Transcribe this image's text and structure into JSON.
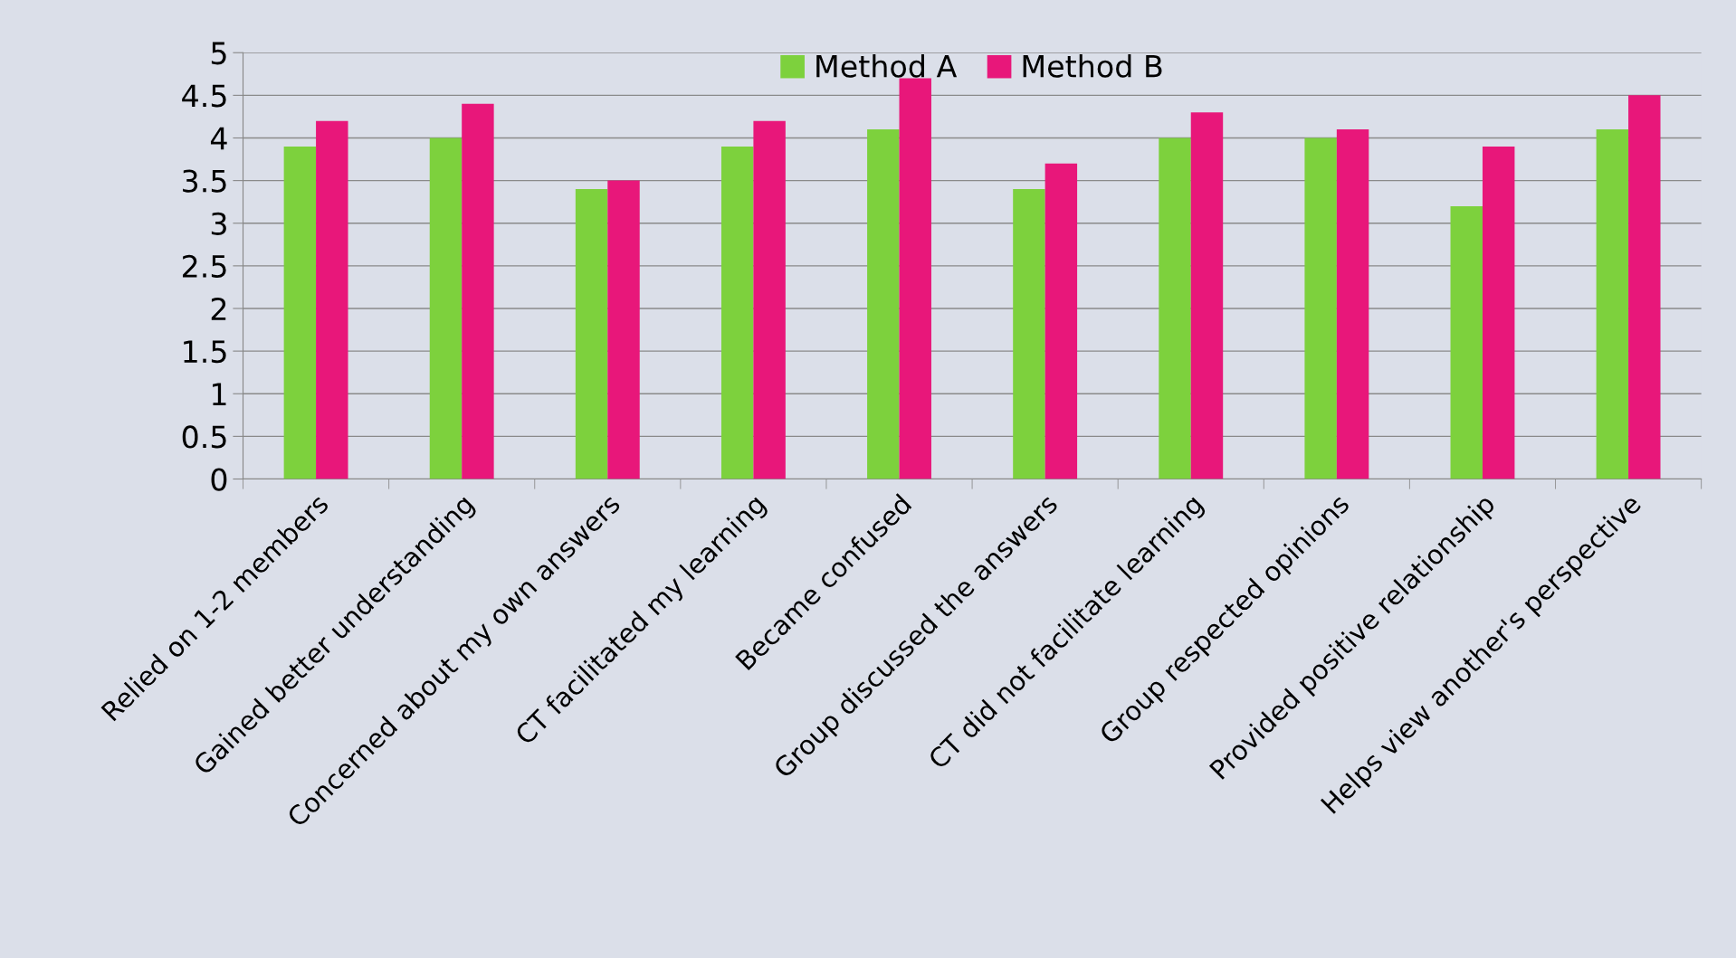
{
  "chart_data": {
    "type": "bar",
    "categories": [
      "Relied on 1-2 members",
      "Gained better understanding",
      "Concerned about my own answers",
      "CT facilitated my learning",
      "Became confused",
      "Group discussed the answers",
      "CT did not facilitate learning",
      "Group respected opinions",
      "Provided positive relationship",
      "Helps view another's perspective"
    ],
    "series": [
      {
        "name": "Method A",
        "color": "#7dd13d",
        "values": [
          3.9,
          4.0,
          3.4,
          3.9,
          4.1,
          3.4,
          4.0,
          4.0,
          3.2,
          4.1
        ]
      },
      {
        "name": "Method B",
        "color": "#e8177a",
        "values": [
          4.2,
          4.4,
          3.5,
          4.2,
          4.7,
          3.7,
          4.3,
          4.1,
          3.9,
          4.5
        ]
      }
    ],
    "ylim": [
      0,
      5
    ],
    "yticks": [
      0,
      0.5,
      1,
      1.5,
      2,
      2.5,
      3,
      3.5,
      4,
      4.5,
      5
    ],
    "grid": "y",
    "legend": "top"
  }
}
